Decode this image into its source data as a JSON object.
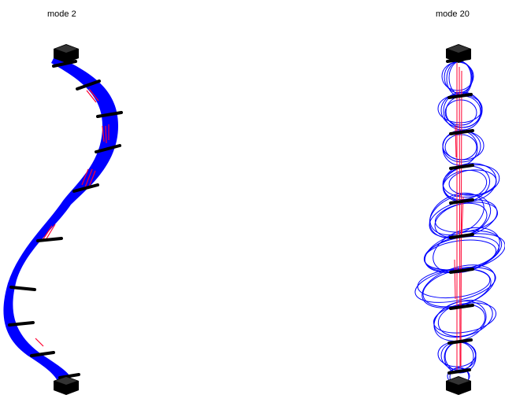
{
  "panels": [
    {
      "title": "mode  2",
      "mode": 2,
      "description_hint": "beam",
      "colors": {
        "body": "#0000ff",
        "stripe": "#ff0030",
        "ring": "#000000",
        "end_block": "#000000"
      }
    },
    {
      "title": "mode  20",
      "mode": 20,
      "colors": {
        "body": "#0000ff",
        "stripe": "#ff0030",
        "ring": "#000000",
        "end_block": "#000000"
      }
    }
  ]
}
